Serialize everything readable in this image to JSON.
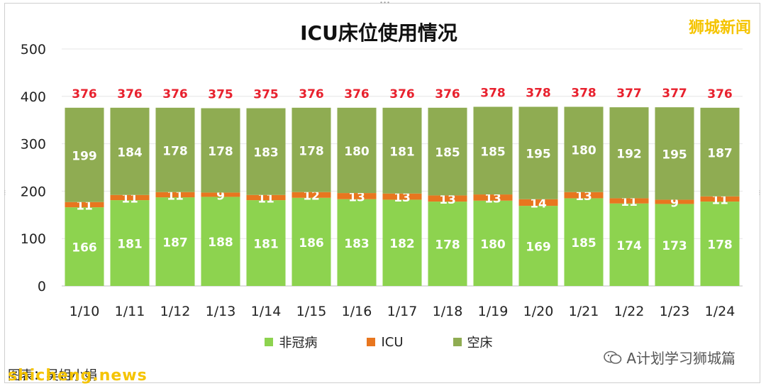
{
  "chart_data": {
    "type": "bar",
    "stacked": true,
    "title": "ICU床位使用情况",
    "xlabel": "",
    "ylabel": "",
    "categories": [
      "1/10",
      "1/11",
      "1/12",
      "1/13",
      "1/14",
      "1/15",
      "1/16",
      "1/17",
      "1/18",
      "1/19",
      "1/20",
      "1/21",
      "1/22",
      "1/23",
      "1/24"
    ],
    "series": [
      {
        "name": "非冠病",
        "color": "#8dd34f",
        "values": [
          166,
          181,
          187,
          188,
          181,
          186,
          183,
          182,
          178,
          180,
          169,
          185,
          174,
          173,
          178
        ]
      },
      {
        "name": "ICU",
        "color": "#e8761f",
        "values": [
          11,
          11,
          11,
          9,
          11,
          12,
          13,
          13,
          13,
          13,
          14,
          13,
          11,
          9,
          11
        ]
      },
      {
        "name": "空床",
        "color": "#8fac52",
        "values": [
          199,
          184,
          178,
          178,
          183,
          178,
          180,
          181,
          185,
          185,
          195,
          180,
          192,
          195,
          187
        ]
      }
    ],
    "totals": [
      376,
      376,
      376,
      375,
      375,
      376,
      376,
      376,
      376,
      378,
      378,
      378,
      377,
      377,
      376
    ],
    "total_label_color": "#e8212e",
    "ylim": [
      0,
      500
    ],
    "yticks": [
      0,
      100,
      200,
      300,
      400,
      500
    ],
    "grid": true,
    "legend_position": "bottom"
  },
  "source_label": "图表：吴姐小娟",
  "watermarks": {
    "brand": "狮城新闻",
    "site": "shicheng.news",
    "wechat": "A计划学习狮城篇",
    "wechat_icon": "wechat-icon"
  }
}
